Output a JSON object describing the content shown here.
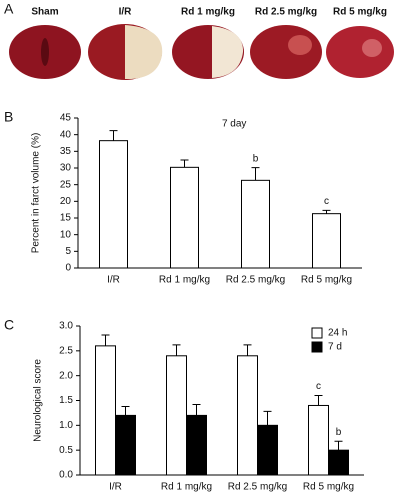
{
  "figure": {
    "panel_labels": [
      "A",
      "B",
      "C"
    ],
    "photo_labels": [
      "Sham",
      "I/R",
      "Rd 1 mg/kg",
      "Rd 2.5 mg/kg",
      "Rd 5 mg/kg"
    ]
  },
  "chart_data": [
    {
      "type": "bar",
      "title": "7 day",
      "y_label": "Percent in farct volume (%)",
      "categories": [
        "I/R",
        "Rd 1 mg/kg",
        "Rd 2.5 mg/kg",
        "Rd 5 mg/kg"
      ],
      "values": [
        38.2,
        30.2,
        26.3,
        16.3
      ],
      "errors": [
        3.0,
        2.2,
        3.8,
        1.0
      ],
      "annotations": [
        null,
        null,
        "b",
        "c"
      ],
      "color": "#ffffff",
      "ylim": [
        0,
        45
      ],
      "yticks": [
        0,
        5,
        10,
        15,
        20,
        25,
        30,
        35,
        40,
        45
      ]
    },
    {
      "type": "grouped_bar",
      "y_label": "Neurological score",
      "categories": [
        "I/R",
        "Rd 1 mg/kg",
        "Rd 2.5 mg/kg",
        "Rd 5 mg/kg"
      ],
      "series": [
        {
          "name": "24 h",
          "color": "#ffffff",
          "values": [
            2.6,
            2.4,
            2.4,
            1.4
          ],
          "errors": [
            0.22,
            0.22,
            0.22,
            0.2
          ],
          "annotations": [
            null,
            null,
            null,
            "c"
          ]
        },
        {
          "name": "7 d",
          "color": "#000000",
          "values": [
            1.2,
            1.2,
            1.0,
            0.5
          ],
          "errors": [
            0.18,
            0.22,
            0.28,
            0.18
          ],
          "annotations": [
            null,
            null,
            null,
            "b"
          ]
        }
      ],
      "legend": "upper right",
      "ylim": [
        0,
        3.0
      ],
      "yticks": [
        {
          "value": 0,
          "label": "0.0"
        },
        {
          "value": 0.5,
          "label": "0.5"
        },
        {
          "value": 1,
          "label": "1.0"
        },
        {
          "value": 1.5,
          "label": "1.5"
        },
        {
          "value": 2,
          "label": "2.0"
        },
        {
          "value": 2.5,
          "label": "2.5"
        },
        {
          "value": 3,
          "label": "3.0"
        }
      ]
    }
  ]
}
